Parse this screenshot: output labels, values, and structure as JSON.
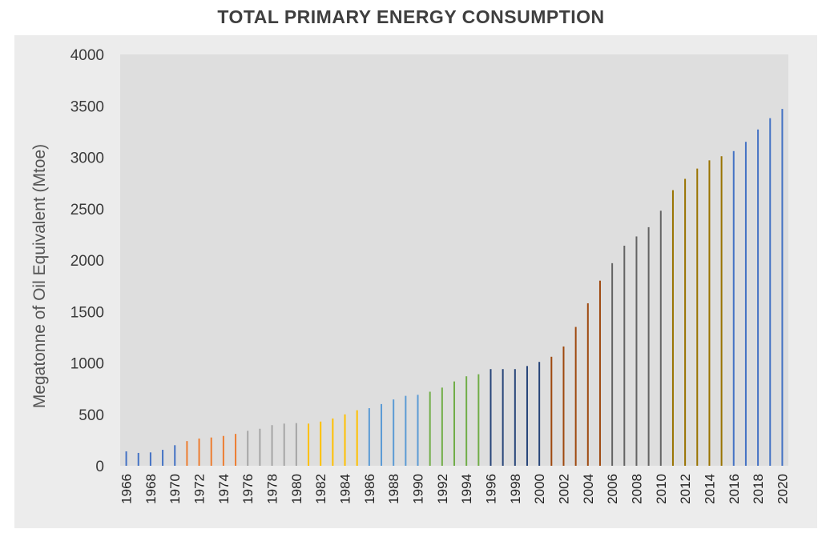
{
  "chart_data": {
    "type": "bar",
    "title": "TOTAL PRIMARY ENERGY CONSUMPTION",
    "xlabel": "",
    "ylabel": "Megatonne of Oil Equivalent (Mtoe)",
    "ylim": [
      0,
      4000
    ],
    "yticks": [
      0,
      500,
      1000,
      1500,
      2000,
      2500,
      3000,
      3500,
      4000
    ],
    "grid": false,
    "legend": "none",
    "categories": [
      "1966",
      "1967",
      "1968",
      "1969",
      "1970",
      "1971",
      "1972",
      "1973",
      "1974",
      "1975",
      "1976",
      "1977",
      "1978",
      "1979",
      "1980",
      "1981",
      "1982",
      "1983",
      "1984",
      "1985",
      "1986",
      "1987",
      "1988",
      "1989",
      "1990",
      "1991",
      "1992",
      "1993",
      "1994",
      "1995",
      "1996",
      "1997",
      "1998",
      "1999",
      "2000",
      "2001",
      "2002",
      "2003",
      "2004",
      "2005",
      "2006",
      "2007",
      "2008",
      "2009",
      "2010",
      "2011",
      "2012",
      "2013",
      "2014",
      "2015",
      "2016",
      "2017",
      "2018",
      "2019",
      "2020"
    ],
    "x_tick_labels": [
      "1966",
      "1968",
      "1970",
      "1972",
      "1974",
      "1976",
      "1978",
      "1980",
      "1982",
      "1984",
      "1986",
      "1988",
      "1990",
      "1992",
      "1994",
      "1996",
      "1998",
      "2000",
      "2002",
      "2004",
      "2006",
      "2008",
      "2010",
      "2012",
      "2014",
      "2016",
      "2018",
      "2020"
    ],
    "values": [
      140,
      125,
      130,
      155,
      200,
      240,
      265,
      275,
      290,
      310,
      340,
      360,
      395,
      410,
      415,
      410,
      430,
      460,
      500,
      540,
      560,
      600,
      645,
      680,
      690,
      720,
      760,
      820,
      870,
      890,
      940,
      940,
      940,
      970,
      1010,
      1060,
      1160,
      1350,
      1580,
      1800,
      1970,
      2140,
      2230,
      2320,
      2480,
      2680,
      2790,
      2890,
      2970,
      3010,
      3060,
      3150,
      3270,
      3380,
      3470
    ],
    "colors": [
      "#4472c4",
      "#4472c4",
      "#4472c4",
      "#4472c4",
      "#4472c4",
      "#ed7d31",
      "#ed7d31",
      "#ed7d31",
      "#ed7d31",
      "#ed7d31",
      "#a5a5a5",
      "#a5a5a5",
      "#a5a5a5",
      "#a5a5a5",
      "#a5a5a5",
      "#ffc000",
      "#ffc000",
      "#ffc000",
      "#ffc000",
      "#ffc000",
      "#5b9bd5",
      "#5b9bd5",
      "#5b9bd5",
      "#5b9bd5",
      "#5b9bd5",
      "#70ad47",
      "#70ad47",
      "#70ad47",
      "#70ad47",
      "#70ad47",
      "#264478",
      "#264478",
      "#264478",
      "#264478",
      "#264478",
      "#9e480e",
      "#9e480e",
      "#9e480e",
      "#9e480e",
      "#9e480e",
      "#636363",
      "#636363",
      "#636363",
      "#636363",
      "#636363",
      "#997300",
      "#997300",
      "#997300",
      "#997300",
      "#997300",
      "#4472c4",
      "#4472c4",
      "#4472c4",
      "#4472c4",
      "#4472c4"
    ],
    "plot_background": "#dedede",
    "outer_background": "#ececec"
  }
}
